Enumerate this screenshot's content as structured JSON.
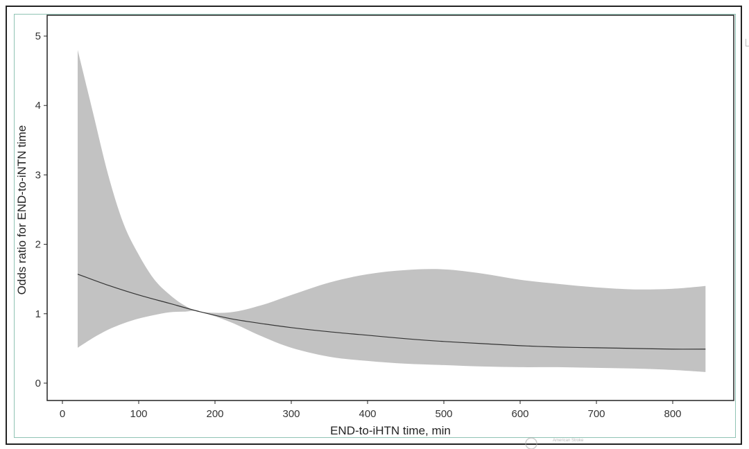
{
  "chart_data": {
    "type": "line",
    "title": "",
    "xlabel": "END-to-iHTN time, min",
    "ylabel": "Odds ratio for END-to-iNTN time",
    "xlim": [
      -20,
      880
    ],
    "ylim": [
      -0.25,
      5.3
    ],
    "x_ticks": [
      0,
      100,
      200,
      300,
      400,
      500,
      600,
      700,
      800
    ],
    "y_ticks": [
      0,
      1,
      2,
      3,
      4,
      5
    ],
    "x_tick_labels": [
      "0",
      "100",
      "200",
      "300",
      "400",
      "500",
      "600",
      "700",
      "800"
    ],
    "y_tick_labels": [
      "0",
      "1",
      "2",
      "3",
      "4",
      "5"
    ],
    "grid": false,
    "legend": "none",
    "series": [
      {
        "role": "estimate",
        "color": "#333333",
        "points": [
          [
            20,
            1.57
          ],
          [
            60,
            1.41
          ],
          [
            100,
            1.27
          ],
          [
            140,
            1.15
          ],
          [
            180,
            1.03
          ],
          [
            220,
            0.93
          ],
          [
            260,
            0.86
          ],
          [
            300,
            0.8
          ],
          [
            350,
            0.74
          ],
          [
            400,
            0.69
          ],
          [
            450,
            0.64
          ],
          [
            500,
            0.6
          ],
          [
            550,
            0.57
          ],
          [
            600,
            0.54
          ],
          [
            650,
            0.52
          ],
          [
            700,
            0.51
          ],
          [
            750,
            0.5
          ],
          [
            800,
            0.49
          ],
          [
            843,
            0.49
          ]
        ]
      },
      {
        "role": "confidence-band",
        "color": "#c2c2c2",
        "upper": [
          [
            20,
            4.8
          ],
          [
            40,
            3.9
          ],
          [
            60,
            3.0
          ],
          [
            80,
            2.3
          ],
          [
            100,
            1.85
          ],
          [
            120,
            1.5
          ],
          [
            140,
            1.28
          ],
          [
            160,
            1.12
          ],
          [
            180,
            1.03
          ],
          [
            220,
            1.02
          ],
          [
            260,
            1.12
          ],
          [
            300,
            1.27
          ],
          [
            350,
            1.45
          ],
          [
            400,
            1.57
          ],
          [
            450,
            1.63
          ],
          [
            500,
            1.64
          ],
          [
            550,
            1.58
          ],
          [
            600,
            1.49
          ],
          [
            650,
            1.43
          ],
          [
            700,
            1.38
          ],
          [
            750,
            1.35
          ],
          [
            800,
            1.36
          ],
          [
            843,
            1.4
          ]
        ],
        "lower": [
          [
            20,
            0.51
          ],
          [
            40,
            0.65
          ],
          [
            60,
            0.77
          ],
          [
            80,
            0.86
          ],
          [
            100,
            0.93
          ],
          [
            120,
            0.98
          ],
          [
            140,
            1.02
          ],
          [
            160,
            1.03
          ],
          [
            180,
            1.03
          ],
          [
            220,
            0.88
          ],
          [
            260,
            0.68
          ],
          [
            300,
            0.51
          ],
          [
            350,
            0.38
          ],
          [
            400,
            0.32
          ],
          [
            450,
            0.28
          ],
          [
            500,
            0.26
          ],
          [
            550,
            0.24
          ],
          [
            600,
            0.23
          ],
          [
            650,
            0.23
          ],
          [
            700,
            0.22
          ],
          [
            750,
            0.21
          ],
          [
            800,
            0.19
          ],
          [
            843,
            0.16
          ]
        ]
      }
    ]
  },
  "watermark": {
    "text": "American Stroke"
  }
}
